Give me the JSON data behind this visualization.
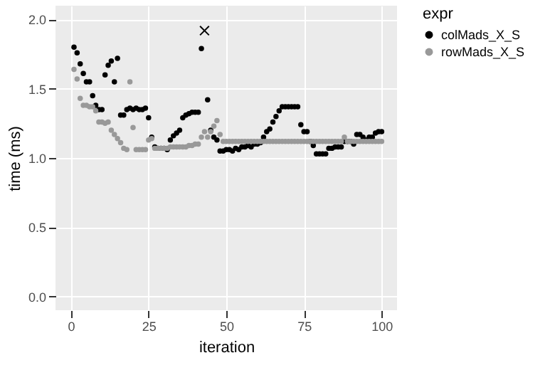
{
  "chart_data": {
    "type": "scatter",
    "xlabel": "iteration",
    "ylabel": "time (ms)",
    "legend_title": "expr",
    "legend": "right",
    "grid": true,
    "marker": "circle",
    "xlim": [
      -4.95,
      104.95
    ],
    "ylim": [
      -0.1,
      2.1
    ],
    "xticks": [
      0,
      25,
      50,
      75,
      100
    ],
    "yticks": [
      {
        "value": 0,
        "label": "0.0"
      },
      {
        "value": 0.5,
        "label": "0.5"
      },
      {
        "value": 1,
        "label": "1.0"
      },
      {
        "value": 1.5,
        "label": "1.5"
      },
      {
        "value": 2,
        "label": "2.0"
      }
    ],
    "x": [
      1,
      2,
      3,
      4,
      5,
      6,
      7,
      8,
      9,
      10,
      11,
      12,
      13,
      14,
      15,
      16,
      17,
      18,
      19,
      20,
      21,
      22,
      23,
      24,
      25,
      26,
      27,
      28,
      29,
      30,
      31,
      32,
      33,
      34,
      35,
      36,
      37,
      38,
      39,
      40,
      41,
      42,
      43,
      44,
      45,
      46,
      47,
      48,
      49,
      50,
      51,
      52,
      53,
      54,
      55,
      56,
      57,
      58,
      59,
      60,
      61,
      62,
      63,
      64,
      65,
      66,
      67,
      68,
      69,
      70,
      71,
      72,
      73,
      74,
      75,
      76,
      77,
      78,
      79,
      80,
      81,
      82,
      83,
      84,
      85,
      86,
      87,
      88,
      89,
      90,
      91,
      92,
      93,
      94,
      95,
      96,
      97,
      98,
      99,
      100
    ],
    "series": [
      {
        "name": "colMads_X_S",
        "color": "#000000",
        "values": [
          1.8,
          1.76,
          1.68,
          1.61,
          1.55,
          1.55,
          1.45,
          1.38,
          1.35,
          1.35,
          1.6,
          1.67,
          1.7,
          1.55,
          1.72,
          1.31,
          1.31,
          1.35,
          1.36,
          1.35,
          1.36,
          1.35,
          1.35,
          1.36,
          1.29,
          1.15,
          1.08,
          1.07,
          1.07,
          1.07,
          1.06,
          1.13,
          1.16,
          1.18,
          1.2,
          1.29,
          1.31,
          1.32,
          1.33,
          1.33,
          1.33,
          1.79,
          null,
          1.42,
          1.2,
          1.15,
          1.13,
          1.05,
          1.05,
          1.06,
          1.06,
          1.05,
          1.07,
          1.06,
          1.08,
          1.08,
          1.09,
          1.08,
          1.1,
          1.1,
          1.11,
          1.15,
          1.19,
          1.21,
          1.26,
          1.3,
          1.34,
          1.37,
          1.37,
          1.37,
          1.37,
          1.37,
          1.37,
          1.24,
          1.19,
          1.19,
          1.12,
          1.09,
          1.03,
          1.03,
          1.03,
          1.03,
          1.07,
          1.07,
          1.08,
          1.08,
          1.08,
          1.12,
          1.12,
          1.12,
          1.1,
          1.17,
          1.17,
          1.15,
          1.13,
          1.15,
          1.15,
          1.18,
          1.19,
          1.19
        ]
      },
      {
        "name": "rowMads_X_S",
        "color": "#999999",
        "values": [
          1.64,
          1.57,
          1.43,
          1.38,
          1.38,
          1.37,
          1.37,
          1.34,
          1.26,
          1.26,
          1.25,
          1.26,
          1.2,
          1.17,
          1.14,
          1.11,
          1.07,
          1.06,
          1.55,
          1.22,
          1.06,
          1.06,
          1.06,
          1.06,
          1.13,
          1.14,
          1.07,
          1.07,
          1.07,
          1.07,
          1.07,
          1.08,
          1.08,
          1.08,
          1.08,
          1.08,
          1.08,
          1.09,
          1.09,
          1.1,
          1.1,
          1.15,
          1.19,
          1.15,
          1.19,
          1.23,
          1.27,
          1.17,
          1.12,
          1.12,
          1.12,
          1.12,
          1.12,
          1.12,
          1.12,
          1.12,
          1.12,
          1.12,
          1.12,
          1.12,
          1.12,
          1.12,
          1.12,
          1.12,
          1.12,
          1.12,
          1.12,
          1.12,
          1.12,
          1.12,
          1.12,
          1.12,
          1.12,
          1.12,
          1.12,
          1.12,
          1.12,
          1.12,
          1.12,
          1.12,
          1.12,
          1.12,
          1.12,
          1.12,
          1.12,
          1.12,
          1.12,
          1.15,
          1.12,
          1.12,
          1.12,
          1.12,
          1.12,
          1.12,
          1.12,
          1.12,
          1.12,
          1.12,
          1.12,
          1.12
        ]
      },
      {
        "type": "scatter",
        "marker": "cross",
        "color": "#000000",
        "x": [
          43
        ],
        "values": [
          1.92
        ]
      }
    ]
  }
}
